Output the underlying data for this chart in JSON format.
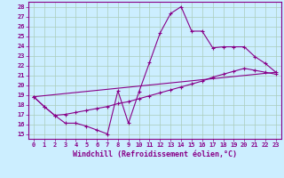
{
  "xlabel": "Windchill (Refroidissement éolien,°C)",
  "background_color": "#cceeff",
  "grid_color": "#aaccbb",
  "line_color": "#880088",
  "x_ticks": [
    0,
    1,
    2,
    3,
    4,
    5,
    6,
    7,
    8,
    9,
    10,
    11,
    12,
    13,
    14,
    15,
    16,
    17,
    18,
    19,
    20,
    21,
    22,
    23
  ],
  "y_ticks": [
    15,
    16,
    17,
    18,
    19,
    20,
    21,
    22,
    23,
    24,
    25,
    26,
    27,
    28
  ],
  "ylim": [
    14.5,
    28.5
  ],
  "xlim": [
    -0.5,
    23.5
  ],
  "curve1_x": [
    0,
    1,
    2,
    3,
    4,
    5,
    6,
    7,
    8,
    9,
    10,
    11,
    12,
    13,
    14,
    15,
    16,
    17,
    18,
    19,
    20,
    21,
    22,
    23
  ],
  "curve1_y": [
    18.8,
    17.8,
    16.9,
    16.1,
    16.1,
    15.8,
    15.4,
    15.0,
    19.4,
    16.1,
    19.3,
    22.3,
    25.3,
    27.3,
    28.0,
    25.5,
    25.5,
    23.8,
    23.9,
    23.9,
    23.9,
    22.9,
    22.2,
    21.3
  ],
  "curve2_x": [
    0,
    1,
    2,
    3,
    4,
    5,
    6,
    7,
    8,
    9,
    10,
    11,
    12,
    13,
    14,
    15,
    16,
    17,
    18,
    19,
    20,
    21,
    22,
    23
  ],
  "curve2_y": [
    18.8,
    17.8,
    16.9,
    17.0,
    17.2,
    17.4,
    17.6,
    17.8,
    18.1,
    18.3,
    18.6,
    18.9,
    19.2,
    19.5,
    19.8,
    20.1,
    20.4,
    20.8,
    21.1,
    21.4,
    21.7,
    21.5,
    21.3,
    21.1
  ],
  "curve3_x": [
    0,
    23
  ],
  "curve3_y": [
    18.8,
    21.3
  ],
  "tick_fontsize": 5.0,
  "label_fontsize": 6.0,
  "lw": 0.8,
  "marker_size": 3.0
}
